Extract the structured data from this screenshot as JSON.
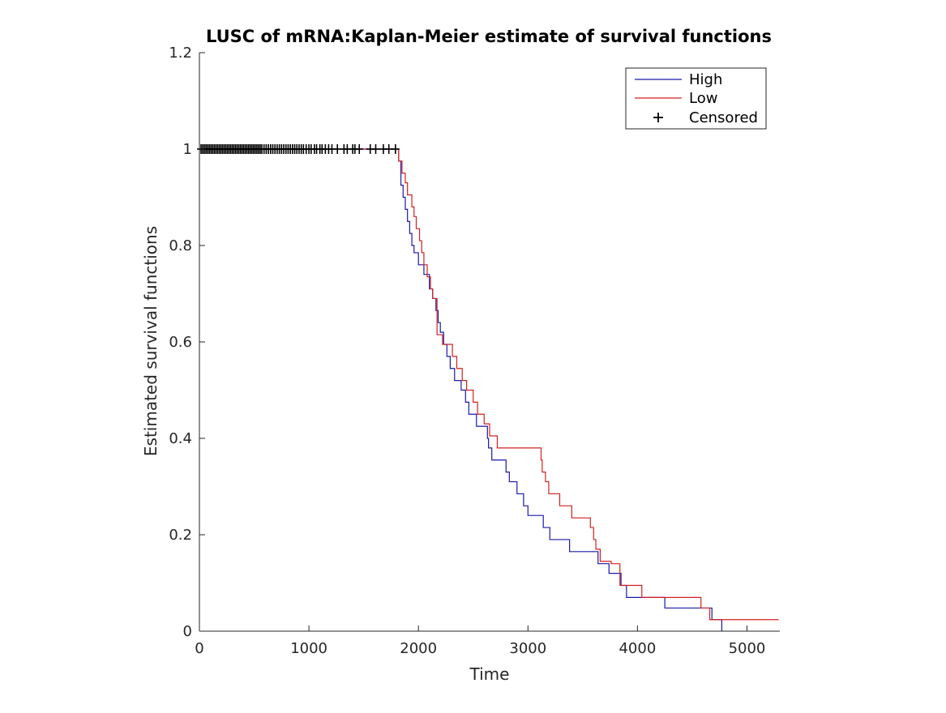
{
  "chart_data": {
    "type": "line",
    "title": "LUSC of mRNA:Kaplan-Meier estimate of survival functions",
    "xlabel": "Time",
    "ylabel": "Estimated survival functions",
    "xlim": [
      0,
      5300
    ],
    "ylim": [
      0,
      1.2
    ],
    "xticks": [
      0,
      1000,
      2000,
      3000,
      4000,
      5000
    ],
    "xtick_labels": [
      "0",
      "1000",
      "2000",
      "3000",
      "4000",
      "5000"
    ],
    "yticks": [
      0,
      0.2,
      0.4,
      0.6,
      0.8,
      1,
      1.2
    ],
    "ytick_labels": [
      "0",
      "0.2",
      "0.4",
      "0.6",
      "0.8",
      "1",
      "1.2"
    ],
    "grid": false,
    "legend_position": "top-right",
    "series": [
      {
        "name": "High",
        "color": "#1a1aa8",
        "x": [
          0,
          1820,
          1840,
          1860,
          1880,
          1900,
          1920,
          1940,
          1960,
          1980,
          2000,
          2050,
          2100,
          2130,
          2160,
          2180,
          2200,
          2230,
          2260,
          2290,
          2330,
          2390,
          2430,
          2460,
          2490,
          2530,
          2630,
          2640,
          2670,
          2700,
          2800,
          2830,
          2900,
          2960,
          3000,
          3140,
          3200,
          3380,
          3640,
          3740,
          3850,
          3900,
          4250,
          4580,
          4680,
          4770
        ],
        "y": [
          1,
          0.975,
          0.925,
          0.9,
          0.875,
          0.85,
          0.825,
          0.8,
          0.785,
          0.785,
          0.76,
          0.74,
          0.71,
          0.69,
          0.665,
          0.64,
          0.62,
          0.595,
          0.57,
          0.545,
          0.52,
          0.5,
          0.475,
          0.45,
          0.45,
          0.425,
          0.4,
          0.38,
          0.355,
          0.355,
          0.33,
          0.31,
          0.285,
          0.26,
          0.24,
          0.215,
          0.19,
          0.165,
          0.14,
          0.12,
          0.095,
          0.07,
          0.048,
          0.048,
          0.024,
          0.0
        ]
      },
      {
        "name": "Low",
        "color": "#d42020",
        "x": [
          0,
          1820,
          1850,
          1880,
          1900,
          1940,
          1960,
          1980,
          2010,
          2030,
          2050,
          2080,
          2110,
          2130,
          2170,
          2220,
          2310,
          2350,
          2400,
          2440,
          2500,
          2540,
          2600,
          2650,
          2720,
          2860,
          3120,
          3130,
          3160,
          3190,
          3290,
          3400,
          3570,
          3600,
          3620,
          3660,
          3760,
          3840,
          4040,
          4070,
          4580,
          4660,
          5290
        ],
        "y": [
          1,
          0.975,
          0.95,
          0.93,
          0.905,
          0.88,
          0.86,
          0.835,
          0.81,
          0.785,
          0.76,
          0.735,
          0.71,
          0.69,
          0.615,
          0.595,
          0.57,
          0.545,
          0.52,
          0.5,
          0.475,
          0.45,
          0.43,
          0.405,
          0.38,
          0.38,
          0.355,
          0.33,
          0.31,
          0.285,
          0.26,
          0.235,
          0.215,
          0.19,
          0.17,
          0.145,
          0.14,
          0.095,
          0.07,
          0.07,
          0.048,
          0.024,
          0.024
        ]
      }
    ],
    "censored": {
      "name": "Censored",
      "color": "#000000",
      "y": 1,
      "x": [
        15,
        30,
        45,
        60,
        75,
        90,
        105,
        120,
        135,
        150,
        165,
        180,
        195,
        210,
        225,
        240,
        255,
        270,
        285,
        300,
        315,
        330,
        345,
        360,
        375,
        390,
        405,
        420,
        435,
        450,
        465,
        480,
        495,
        510,
        525,
        540,
        555,
        570,
        590,
        610,
        630,
        650,
        670,
        690,
        710,
        730,
        750,
        770,
        790,
        810,
        830,
        850,
        870,
        890,
        910,
        930,
        950,
        975,
        1000,
        1020,
        1050,
        1070,
        1100,
        1120,
        1150,
        1180,
        1210,
        1260,
        1320,
        1350,
        1400,
        1420,
        1460,
        1560,
        1610,
        1680,
        1730,
        1790
      ]
    }
  }
}
